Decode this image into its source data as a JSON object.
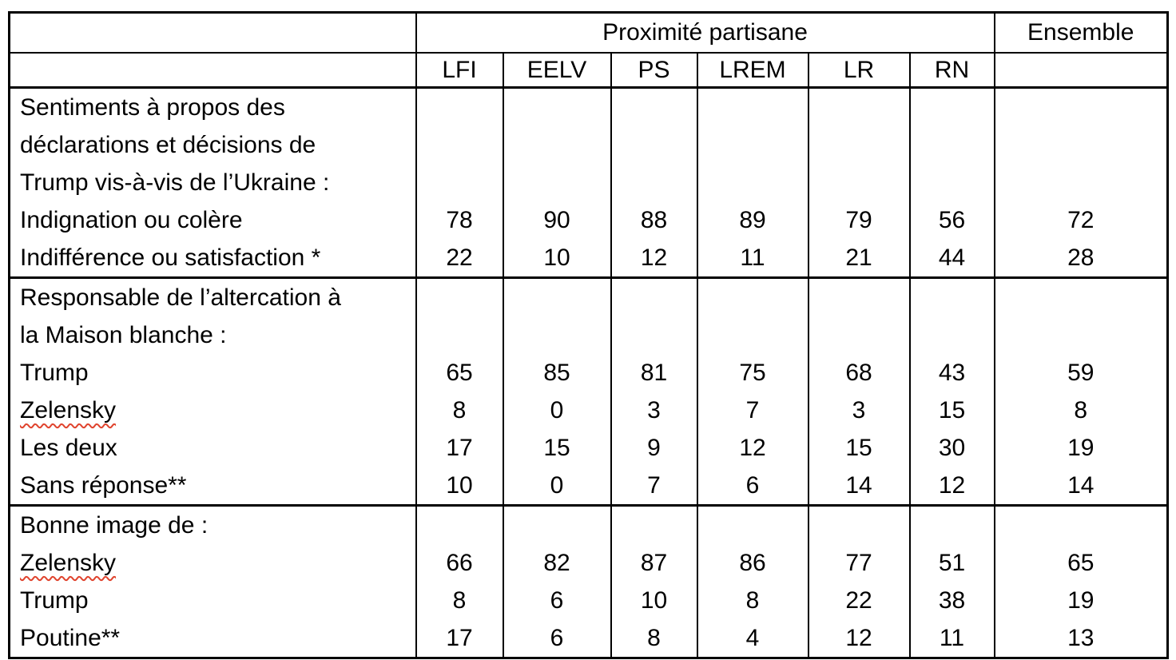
{
  "table": {
    "header": {
      "group_label": "Proximité partisane",
      "ensemble_label": "Ensemble",
      "party_columns": [
        "LFI",
        "EELV",
        "PS",
        "LREM",
        "LR",
        "RN"
      ]
    },
    "spellcheck_color": "#e0442e",
    "sections": [
      {
        "intro_lines": [
          "Sentiments à propos des",
          "déclarations et décisions de",
          "Trump vis-à-vis de l’Ukraine :"
        ],
        "rows": [
          {
            "label": "Indignation ou colère",
            "misspelled": false,
            "values": [
              "78",
              "90",
              "88",
              "89",
              "79",
              "56",
              "72"
            ]
          },
          {
            "label": "Indifférence ou satisfaction *",
            "misspelled": false,
            "values": [
              "22",
              "10",
              "12",
              "11",
              "21",
              "44",
              "28"
            ]
          }
        ]
      },
      {
        "intro_lines": [
          "Responsable de l’altercation à",
          "la Maison blanche :"
        ],
        "rows": [
          {
            "label": "Trump",
            "misspelled": false,
            "values": [
              "65",
              "85",
              "81",
              "75",
              "68",
              "43",
              "59"
            ]
          },
          {
            "label": "Zelensky",
            "misspelled": true,
            "values": [
              "8",
              "0",
              "3",
              "7",
              "3",
              "15",
              "8"
            ]
          },
          {
            "label": "Les deux",
            "misspelled": false,
            "values": [
              "17",
              "15",
              "9",
              "12",
              "15",
              "30",
              "19"
            ]
          },
          {
            "label": "Sans réponse**",
            "misspelled": false,
            "values": [
              "10",
              "0",
              "7",
              "6",
              "14",
              "12",
              "14"
            ]
          }
        ]
      },
      {
        "intro_lines": [
          "Bonne image de :"
        ],
        "rows": [
          {
            "label": "Zelensky",
            "misspelled": true,
            "values": [
              "66",
              "82",
              "87",
              "86",
              "77",
              "51",
              "65"
            ]
          },
          {
            "label": "Trump",
            "misspelled": false,
            "values": [
              "8",
              "6",
              "10",
              "8",
              "22",
              "38",
              "19"
            ]
          },
          {
            "label": "Poutine**",
            "misspelled": false,
            "values": [
              "17",
              "6",
              "8",
              "4",
              "12",
              "11",
              "13"
            ]
          }
        ]
      }
    ]
  }
}
